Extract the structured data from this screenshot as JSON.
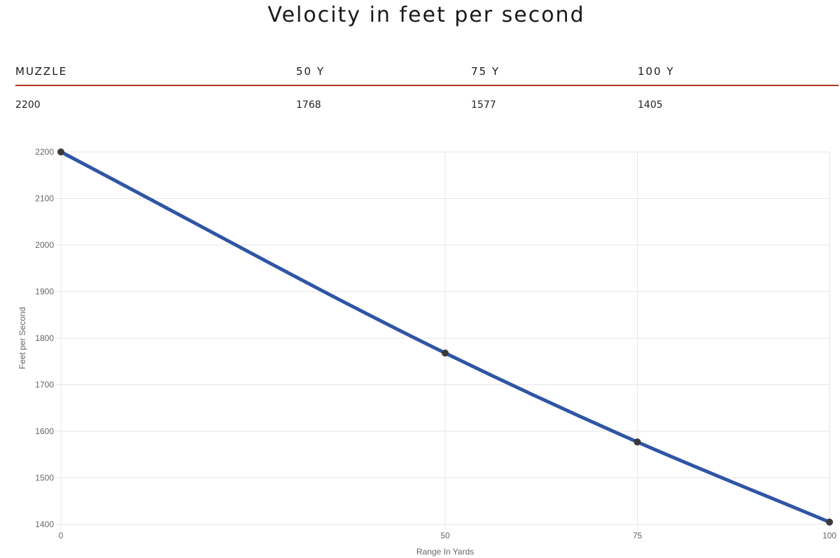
{
  "table": {
    "headers": [
      "MUZZLE",
      "50 Y",
      "75 Y",
      "100 Y"
    ],
    "values": [
      "2200",
      "1768",
      "1577",
      "1405"
    ]
  },
  "colors": {
    "line": "#2f55a4",
    "point": "#3a3a3a",
    "grid": "#e6e6e6",
    "table_rule": "#b5321f"
  },
  "chart_data": {
    "type": "line",
    "title": "Velocity in feet per second",
    "xlabel": "Range In Yards",
    "ylabel": "Feet per Second",
    "x": [
      0,
      50,
      75,
      100
    ],
    "x_ticks": [
      "0",
      "50",
      "75",
      "100"
    ],
    "y_ticks": [
      "1400",
      "1500",
      "1600",
      "1700",
      "1800",
      "1900",
      "2000",
      "2100",
      "2200"
    ],
    "ylim": [
      1400,
      2200
    ],
    "grid": true,
    "series": [
      {
        "values": [
          2200,
          1768,
          1577,
          1405
        ]
      }
    ]
  }
}
